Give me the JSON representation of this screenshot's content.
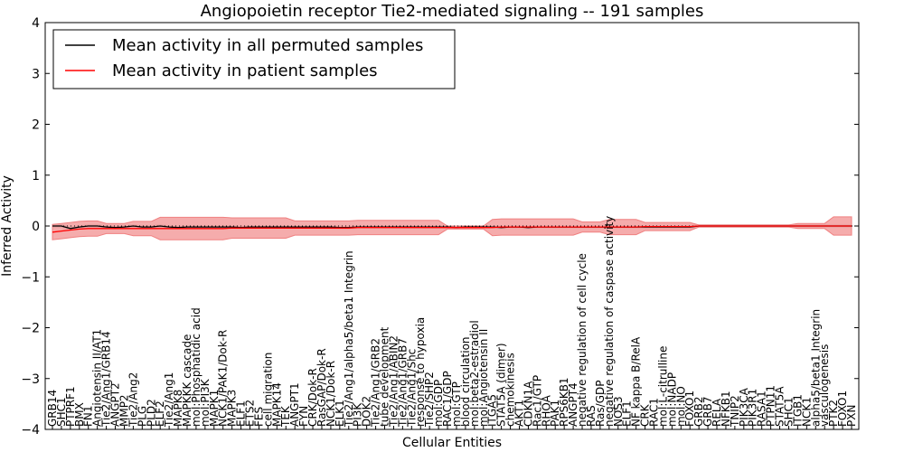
{
  "chart_data": {
    "type": "line",
    "title": "Angiopoietin receptor Tie2-mediated signaling -- 191 samples",
    "xlabel": "Cellular Entities",
    "ylabel": "Inferred Activity",
    "ylim": [
      -4,
      4
    ],
    "y_ticks": [
      "4",
      "3",
      "2",
      "1",
      "0",
      "−1",
      "−2",
      "−3",
      "−4"
    ],
    "y_tick_values": [
      4,
      3,
      2,
      1,
      0,
      -1,
      -2,
      -3,
      -4
    ],
    "legend_position": "top-left",
    "categories": [
      "GRB14",
      "SHC1",
      "PTPRF1",
      "BMX",
      "FN1",
      "Angiotensin II/AT1",
      "Tie2/Ang1/GRB14",
      "ANGPT2",
      "MMP2",
      "Tie2/Ang2",
      "PLG",
      "PLD2",
      "ELF2",
      "Tie2/Ang1",
      "MAPK8",
      "MAPKKK cascade",
      "mol:Phosphatidic acid",
      "mol:PI3K",
      "MAPK1",
      "NCK1/PAK1/Dok-R",
      "MAPK3",
      "ELF1",
      "ETS2",
      "FES",
      "cell migration",
      "MAPK14",
      "TEK",
      "ANGPT1",
      "FYN",
      "CRK/Dok-R",
      "RasGAP/Dok-R",
      "NCK1/Dok-R",
      "ELK1",
      "Tie2/Ang1/alpha5/beta1 Integrin",
      "PI3K",
      "DOK2",
      "Tie2/Ang1/GRB2",
      "tube development",
      "Tie2/Ang1/ABIN2",
      "Tie2/Ang1/GRB7",
      "Tie2/Ang1/Shc",
      "response to hypoxia",
      "Tie2/SHP2",
      "mol:GDP",
      "RAC1/GDP",
      "mol:GTP",
      "blood circulation",
      "mol:beta2-estradiol",
      "mol:Angiotensin II",
      "ITGA5",
      "STAT5A (dimer)",
      "chemokinesis",
      "AKT1",
      "CDKN1A",
      "Rac1/GTP",
      "RHOA",
      "PAK1",
      "RPS6KB1",
      "ANGPT4",
      "negative regulation of cell cycle",
      "RAS",
      "Ras/GDP",
      "negative regulation of caspase activity",
      "NOS3",
      "ELF1",
      "NF kappa B/RelA",
      "CRK",
      "RAC1",
      "mol:L-citrulline",
      "mol:NADP",
      "mol:NO",
      "FOXO1",
      "GRB2",
      "GRB7",
      "RELA",
      "NFKB1",
      "TNIP2",
      "PIK3CA",
      "PIK3R1",
      "RASA1",
      "PTPN11",
      "STAT5A",
      "SHC1",
      "ITGB1",
      "NCK1",
      "alpha5/beta1 Integrin",
      "vasculogenesis",
      "PTK2",
      "FOXO1",
      "PXN"
    ],
    "bands": [
      {
        "start": 0,
        "end": 6,
        "half_width": 0.15
      },
      {
        "start": 6,
        "end": 9,
        "half_width": 0.1
      },
      {
        "start": 9,
        "end": 12,
        "half_width": 0.14
      },
      {
        "start": 12,
        "end": 20,
        "half_width": 0.22
      },
      {
        "start": 20,
        "end": 27,
        "half_width": 0.2
      },
      {
        "start": 27,
        "end": 34,
        "half_width": 0.14
      },
      {
        "start": 34,
        "end": 44,
        "half_width": 0.14
      },
      {
        "start": 44,
        "end": 49,
        "half_width": 0.03
      },
      {
        "start": 49,
        "end": 59,
        "half_width": 0.16
      },
      {
        "start": 59,
        "end": 62,
        "half_width": 0.1
      },
      {
        "start": 62,
        "end": 66,
        "half_width": 0.15
      },
      {
        "start": 66,
        "end": 72,
        "half_width": 0.08
      },
      {
        "start": 72,
        "end": 83,
        "half_width": 0.02
      },
      {
        "start": 83,
        "end": 87,
        "half_width": 0.05
      },
      {
        "start": 87,
        "end": 90,
        "half_width": 0.18
      }
    ],
    "series": [
      {
        "name": "Mean activity in all permuted samples",
        "color": "#000000",
        "values": [
          0.0,
          0.0,
          -0.05,
          -0.02,
          0.0,
          0.0,
          -0.02,
          -0.03,
          -0.02,
          0.0,
          -0.02,
          -0.02,
          0.0,
          -0.02,
          -0.03,
          -0.02,
          -0.02,
          -0.02,
          -0.02,
          -0.02,
          -0.02,
          -0.03,
          -0.02,
          -0.02,
          -0.02,
          -0.02,
          -0.02,
          -0.02,
          -0.02,
          -0.02,
          -0.02,
          -0.02,
          -0.03,
          -0.03,
          -0.02,
          -0.02,
          -0.02,
          -0.02,
          -0.02,
          -0.02,
          -0.02,
          -0.02,
          -0.02,
          -0.02,
          -0.02,
          -0.03,
          -0.02,
          -0.02,
          -0.02,
          -0.02,
          -0.03,
          -0.02,
          -0.02,
          -0.03,
          -0.02,
          -0.02,
          -0.02,
          -0.02,
          -0.02,
          -0.02,
          -0.02,
          -0.02,
          -0.02,
          -0.02,
          -0.02,
          -0.02,
          -0.02,
          -0.02,
          -0.02,
          -0.02,
          -0.02,
          -0.02,
          0.0,
          0.0,
          0.0,
          0.0,
          0.0,
          0.0,
          0.0,
          0.0,
          0.0,
          0.0,
          0.0,
          0.0,
          0.0,
          0.0,
          0.0,
          0.0,
          0.0,
          0.0
        ]
      },
      {
        "name": "Mean activity in patient samples",
        "color": "#ff0000",
        "values": [
          -0.12,
          -0.1,
          -0.08,
          -0.06,
          -0.05,
          -0.05,
          -0.05,
          -0.05,
          -0.05,
          -0.05,
          -0.05,
          -0.05,
          -0.05,
          -0.05,
          -0.05,
          -0.05,
          -0.05,
          -0.05,
          -0.05,
          -0.05,
          -0.04,
          -0.04,
          -0.04,
          -0.04,
          -0.04,
          -0.04,
          -0.04,
          -0.04,
          -0.04,
          -0.04,
          -0.04,
          -0.04,
          -0.04,
          -0.04,
          -0.03,
          -0.03,
          -0.03,
          -0.03,
          -0.03,
          -0.03,
          -0.03,
          -0.03,
          -0.03,
          -0.03,
          -0.03,
          -0.03,
          -0.03,
          -0.03,
          -0.03,
          -0.03,
          -0.02,
          -0.02,
          -0.02,
          -0.02,
          -0.02,
          -0.02,
          -0.02,
          -0.02,
          -0.02,
          -0.02,
          -0.02,
          -0.02,
          -0.02,
          -0.02,
          -0.02,
          -0.02,
          -0.01,
          -0.01,
          -0.01,
          -0.01,
          -0.01,
          -0.01,
          0.0,
          0.0,
          0.0,
          0.0,
          0.0,
          0.0,
          0.0,
          0.0,
          0.0,
          0.0,
          0.0,
          0.0,
          0.0,
          0.0,
          0.0,
          0.0,
          0.0,
          0.0
        ]
      }
    ],
    "reference_line": {
      "value": 0,
      "style": "dotted"
    }
  }
}
